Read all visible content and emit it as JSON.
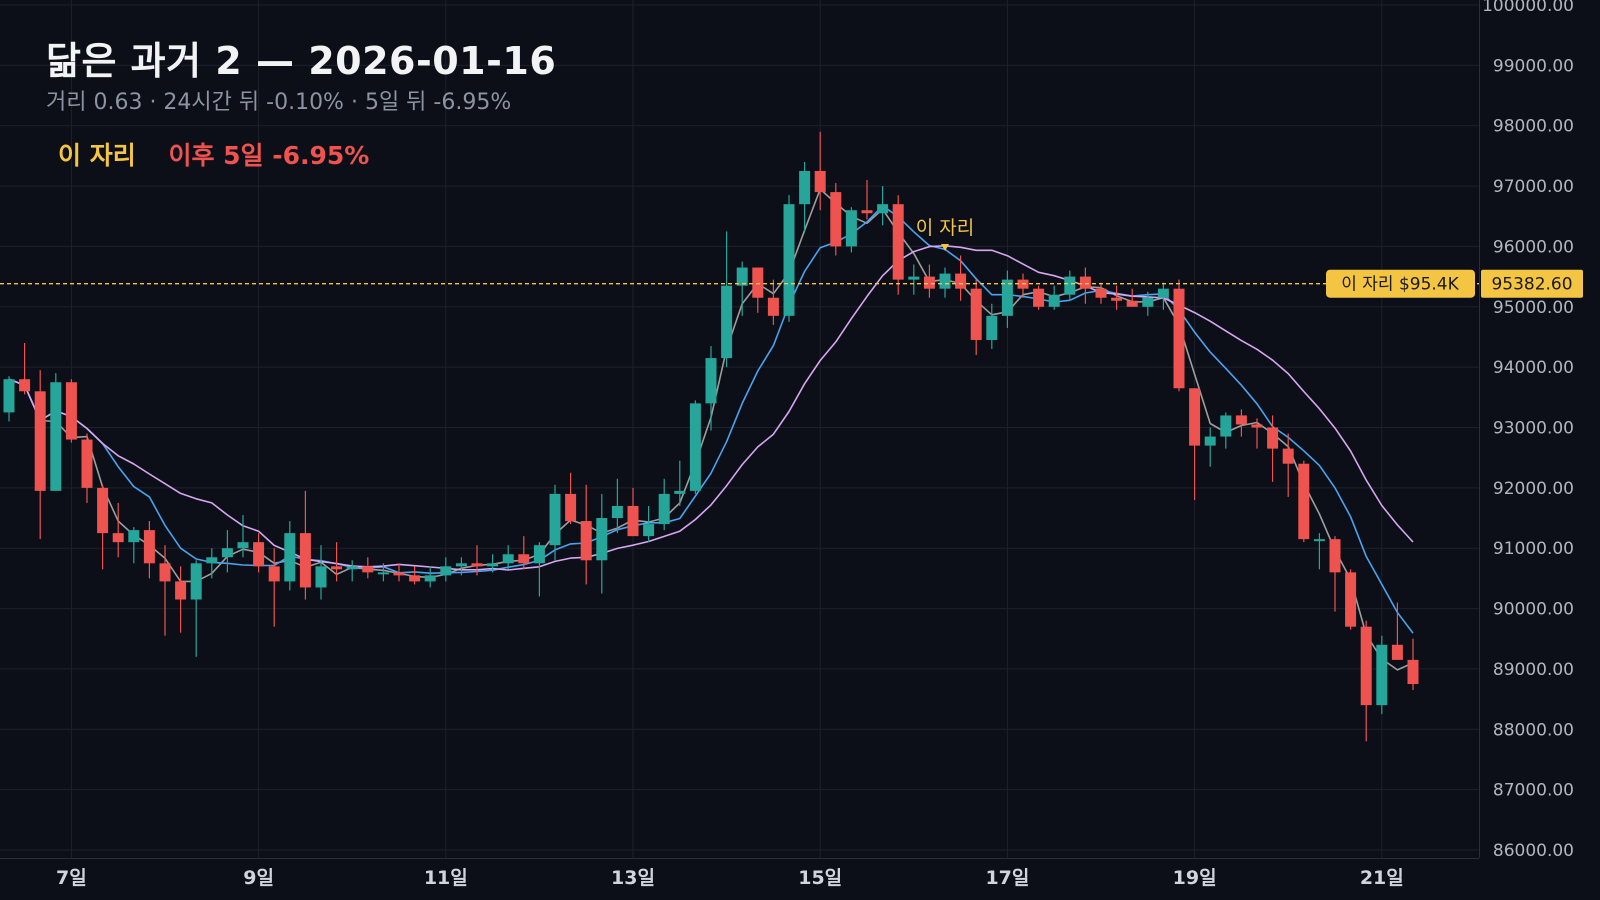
{
  "header": {
    "title": "닮은 과거 2 — 2026-01-16",
    "subtitle": "거리 0.63 · 24시간 뒤 -0.10% · 5일 뒤 -6.95%"
  },
  "legend": {
    "spot_label": "이 자리",
    "after_label": "이후 5일 -6.95%"
  },
  "colors": {
    "background": "#0c0f17",
    "grid": "#1d212b",
    "up": "#26a69a",
    "down": "#ef5350",
    "ma_short": "#9e9e9e",
    "ma_mid": "#4aa3f0",
    "ma_long": "#d7a6f0",
    "marker": "#f4c542"
  },
  "chart_data": {
    "type": "candlestick",
    "ylim": [
      86000,
      100000
    ],
    "y_ticks": [
      "86000.00",
      "87000.00",
      "88000.00",
      "89000.00",
      "90000.00",
      "91000.00",
      "92000.00",
      "93000.00",
      "94000.00",
      "95000.00",
      "96000.00",
      "97000.00",
      "98000.00",
      "99000.00",
      "100000.00"
    ],
    "x_ticks": [
      {
        "index": 4,
        "label": "7일"
      },
      {
        "index": 16,
        "label": "9일"
      },
      {
        "index": 28,
        "label": "11일"
      },
      {
        "index": 40,
        "label": "13일"
      },
      {
        "index": 52,
        "label": "15일"
      },
      {
        "index": 64,
        "label": "17일"
      },
      {
        "index": 76,
        "label": "19일"
      },
      {
        "index": 88,
        "label": "21일"
      }
    ],
    "marker": {
      "index": 60,
      "label": "이 자리",
      "price_label": "이 자리 $95.4K",
      "price": 95382.6,
      "price_text": "95382.60"
    },
    "candles": [
      [
        93250,
        93850,
        93100,
        93800
      ],
      [
        93800,
        94400,
        93550,
        93600
      ],
      [
        93600,
        93950,
        91150,
        91950
      ],
      [
        91950,
        93900,
        91950,
        93750
      ],
      [
        93750,
        93800,
        92750,
        92800
      ],
      [
        92800,
        92900,
        91750,
        92000
      ],
      [
        92000,
        92050,
        90650,
        91250
      ],
      [
        91250,
        91750,
        90850,
        91100
      ],
      [
        91100,
        91350,
        90750,
        91300
      ],
      [
        91300,
        91450,
        90500,
        90750
      ],
      [
        90750,
        91050,
        89550,
        90450
      ],
      [
        90450,
        90700,
        89600,
        90150
      ],
      [
        90150,
        90800,
        89200,
        90750
      ],
      [
        90750,
        91000,
        90500,
        90850
      ],
      [
        90850,
        91300,
        90600,
        91000
      ],
      [
        91000,
        91550,
        90850,
        91100
      ],
      [
        91100,
        91250,
        90600,
        90700
      ],
      [
        90700,
        91000,
        89700,
        90450
      ],
      [
        90450,
        91450,
        90300,
        91250
      ],
      [
        91250,
        91950,
        90150,
        90350
      ],
      [
        90350,
        91050,
        90150,
        90700
      ],
      [
        90700,
        91100,
        90450,
        90650
      ],
      [
        90650,
        90800,
        90450,
        90700
      ],
      [
        90700,
        90850,
        90500,
        90600
      ],
      [
        90600,
        90750,
        90450,
        90600
      ],
      [
        90600,
        90750,
        90450,
        90550
      ],
      [
        90550,
        90700,
        90400,
        90450
      ],
      [
        90450,
        90700,
        90350,
        90550
      ],
      [
        90550,
        90850,
        90450,
        90700
      ],
      [
        90700,
        90850,
        90550,
        90750
      ],
      [
        90750,
        91050,
        90550,
        90700
      ],
      [
        90700,
        90900,
        90600,
        90750
      ],
      [
        90750,
        91050,
        90650,
        90900
      ],
      [
        90900,
        91200,
        90650,
        90750
      ],
      [
        90750,
        91100,
        90200,
        91050
      ],
      [
        91050,
        92050,
        90800,
        91900
      ],
      [
        91900,
        92250,
        91400,
        91450
      ],
      [
        91450,
        92050,
        90400,
        90800
      ],
      [
        90800,
        91900,
        90250,
        91500
      ],
      [
        91500,
        92150,
        91250,
        91700
      ],
      [
        91700,
        92000,
        91200,
        91200
      ],
      [
        91200,
        91700,
        91100,
        91400
      ],
      [
        91400,
        92150,
        91300,
        91900
      ],
      [
        91900,
        92450,
        91700,
        91950
      ],
      [
        91950,
        93450,
        91900,
        93400
      ],
      [
        93400,
        94350,
        92950,
        94150
      ],
      [
        94150,
        96250,
        94000,
        95350
      ],
      [
        95350,
        95750,
        94850,
        95650
      ],
      [
        95650,
        95650,
        94900,
        95150
      ],
      [
        95150,
        95450,
        94700,
        94850
      ],
      [
        94850,
        96850,
        94750,
        96700
      ],
      [
        96700,
        97400,
        96250,
        97250
      ],
      [
        97250,
        97900,
        96600,
        96900
      ],
      [
        96900,
        97050,
        95850,
        96000
      ],
      [
        96000,
        96650,
        95900,
        96600
      ],
      [
        96600,
        97100,
        96450,
        96550
      ],
      [
        96550,
        97000,
        96350,
        96700
      ],
      [
        96700,
        96850,
        95200,
        95450
      ],
      [
        95450,
        95700,
        95200,
        95500
      ],
      [
        95500,
        95700,
        95150,
        95300
      ],
      [
        95300,
        95650,
        95150,
        95550
      ],
      [
        95550,
        95850,
        95100,
        95300
      ],
      [
        95300,
        95450,
        94200,
        94450
      ],
      [
        94450,
        95050,
        94300,
        94850
      ],
      [
        94850,
        95600,
        94650,
        95450
      ],
      [
        95450,
        95550,
        95150,
        95300
      ],
      [
        95300,
        95350,
        94950,
        95000
      ],
      [
        95000,
        95350,
        94950,
        95200
      ],
      [
        95200,
        95600,
        95100,
        95500
      ],
      [
        95500,
        95650,
        95050,
        95300
      ],
      [
        95300,
        95400,
        95050,
        95150
      ],
      [
        95150,
        95350,
        94950,
        95100
      ],
      [
        95100,
        95300,
        95000,
        95000
      ],
      [
        95000,
        95250,
        94850,
        95150
      ],
      [
        95150,
        95400,
        94950,
        95300
      ],
      [
        95300,
        95450,
        93600,
        93650
      ],
      [
        93650,
        93650,
        91800,
        92700
      ],
      [
        92700,
        93000,
        92350,
        92850
      ],
      [
        92850,
        93250,
        92650,
        93200
      ],
      [
        93200,
        93300,
        92850,
        93050
      ],
      [
        93050,
        93150,
        92650,
        93000
      ],
      [
        93000,
        93200,
        92100,
        92650
      ],
      [
        92650,
        92900,
        91850,
        92400
      ],
      [
        92400,
        92450,
        91100,
        91150
      ],
      [
        91150,
        91250,
        90650,
        91150
      ],
      [
        91150,
        91200,
        89950,
        90600
      ],
      [
        90600,
        90650,
        89650,
        89700
      ],
      [
        89700,
        89800,
        87800,
        88400
      ],
      [
        88400,
        89550,
        88250,
        89400
      ],
      [
        89400,
        90100,
        89150,
        89150
      ],
      [
        89150,
        89500,
        88650,
        88750
      ]
    ],
    "series": [
      {
        "key": "ma_short",
        "period": 3
      },
      {
        "key": "ma_mid",
        "period": 7
      },
      {
        "key": "ma_long",
        "period": 14
      }
    ]
  }
}
